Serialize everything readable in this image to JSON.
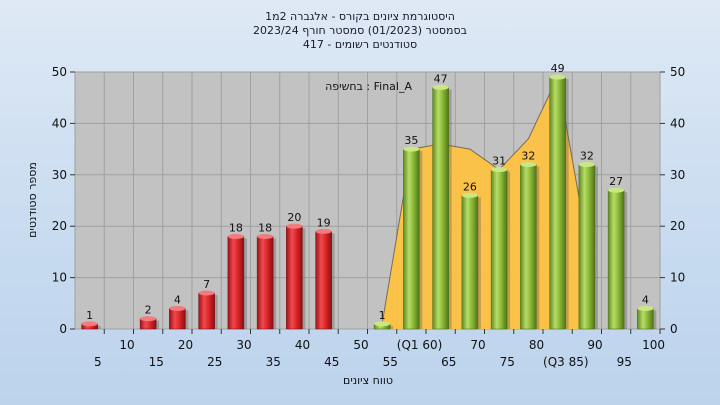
{
  "chart_data": {
    "type": "bar",
    "title_lines": [
      "היסטוגרמת ציונים בקורס - אלגברה 2מ1",
      "בסמסטר  (01/2023)  סמסטר חורף  2023/24",
      "סטודנטים רשומים - 417"
    ],
    "ylabel": "מספר סטודנטים",
    "xlabel": "טווח ציונים",
    "ylim": [
      0,
      50
    ],
    "yticks": [
      0,
      10,
      20,
      30,
      40,
      50
    ],
    "grid": true,
    "legend_text": "בחשיפה : Final_A",
    "categories": [
      "5",
      "10",
      "15",
      "20",
      "25",
      "30",
      "35",
      "40",
      "45",
      "50",
      "55",
      "(Q1 60)",
      "65",
      "70",
      "75",
      "80",
      "(Q3 85)",
      "90",
      "95",
      "100"
    ],
    "series": [
      {
        "values": [
          1,
          0,
          2,
          4,
          7,
          18,
          18,
          20,
          19,
          0,
          1,
          35,
          47,
          26,
          31,
          32,
          49,
          32,
          27,
          4
        ]
      }
    ],
    "labels": [
      "1",
      "",
      "2",
      "4",
      "7",
      "18",
      "18",
      "20",
      "19",
      "",
      "1",
      "35",
      "47",
      "26",
      "31",
      "32",
      "49",
      "32",
      "27",
      "4"
    ],
    "colors": {
      "fail_bar": "#e0282c",
      "pass_bar": "#8fbe3a",
      "area": "#ffc23e",
      "plot_bg": "#c2c2c2",
      "grid": "#a0a0a0"
    },
    "pass_from_index": 10,
    "area_overlay": {
      "start_index": 10,
      "end_index": 17,
      "values": [
        1,
        35,
        36,
        35,
        31,
        37,
        49,
        17
      ]
    }
  }
}
